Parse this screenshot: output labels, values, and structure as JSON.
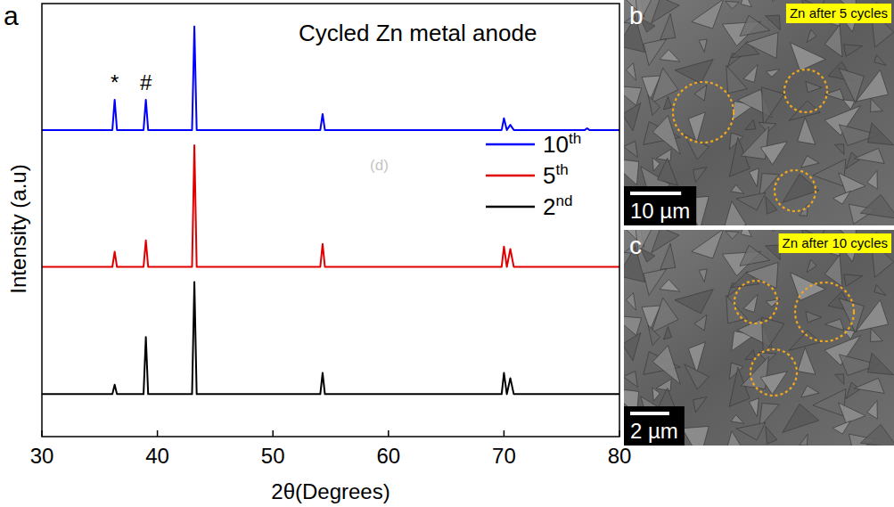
{
  "chart_data": {
    "type": "line",
    "panel": "a",
    "title": "Cycled Zn metal anode",
    "x_label": "2θ(Degrees)",
    "y_label": "Intensity (a.u)",
    "xlim": [
      30,
      80
    ],
    "xticks": [
      30,
      40,
      50,
      60,
      70,
      80
    ],
    "ylim": [
      0,
      100
    ],
    "tick_labels": "x",
    "legend": "right",
    "grid": false,
    "x": [
      30,
      36.1,
      36.3,
      36.5,
      38.8,
      39.0,
      39.2,
      43.0,
      43.2,
      43.4,
      54.1,
      54.3,
      54.5,
      69.8,
      70.0,
      70.25,
      70.55,
      70.85,
      77.0,
      77.2,
      77.4,
      80
    ],
    "series": [
      {
        "name": "10th",
        "color": "#0000ff",
        "values": [
          70.8,
          70.8,
          77.8,
          70.8,
          70.8,
          77.8,
          70.8,
          70.8,
          94.7,
          70.8,
          70.8,
          74.5,
          70.8,
          70.8,
          73.5,
          70.8,
          72.0,
          70.8,
          70.8,
          71.2,
          70.8,
          70.8
        ]
      },
      {
        "name": "5th",
        "color": "#e00000",
        "values": [
          39.2,
          39.2,
          42.7,
          39.2,
          39.2,
          45.3,
          39.2,
          39.2,
          67.3,
          39.2,
          39.2,
          44.5,
          39.2,
          39.2,
          43.9,
          39.2,
          43.3,
          39.2,
          39.2,
          39.2,
          39.2,
          39.2
        ]
      },
      {
        "name": "2nd",
        "color": "#000000",
        "values": [
          9.8,
          9.8,
          12.0,
          9.8,
          9.8,
          23.0,
          9.8,
          9.8,
          35.7,
          9.8,
          9.8,
          14.7,
          9.8,
          9.8,
          14.7,
          9.8,
          13.5,
          9.8,
          9.8,
          9.8,
          9.8,
          9.8
        ]
      }
    ],
    "annotations": [
      {
        "text": "*",
        "x": 36.3,
        "y": 80
      },
      {
        "text": "#",
        "x": 39.0,
        "y": 80
      },
      {
        "text": "(d)",
        "x": 59.2,
        "y": 62.7
      }
    ]
  },
  "images": [
    {
      "panel": "b",
      "caption": "Zn after 5 cycles",
      "scale_bar": "10 µm"
    },
    {
      "panel": "c",
      "caption": "Zn after 10 cycles",
      "scale_bar": "2 µm"
    }
  ]
}
